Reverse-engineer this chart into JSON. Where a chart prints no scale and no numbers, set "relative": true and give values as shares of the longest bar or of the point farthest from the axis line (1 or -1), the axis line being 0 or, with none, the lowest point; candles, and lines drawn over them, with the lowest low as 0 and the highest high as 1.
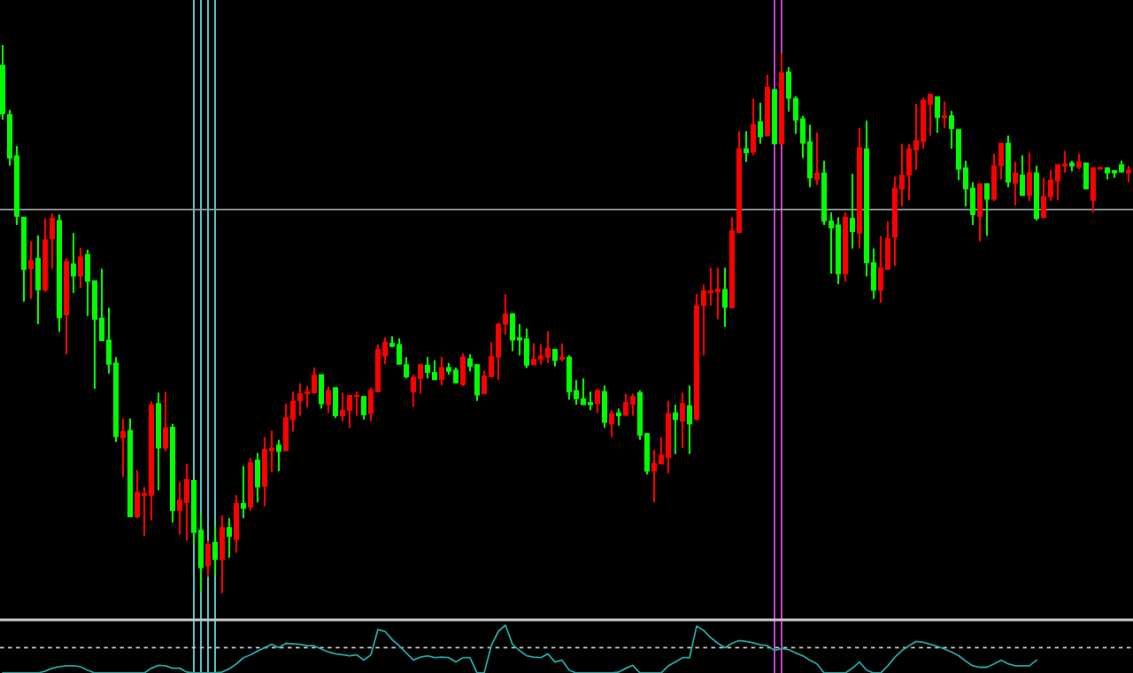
{
  "chart_data": [
    {
      "type": "candlestick",
      "relative": true,
      "categories": [
        null,
        null,
        null,
        null,
        null,
        null,
        null,
        null,
        null,
        null,
        null,
        null,
        null,
        null,
        null,
        null,
        null,
        null,
        null,
        null,
        null,
        null,
        null,
        null,
        null,
        null,
        null,
        null,
        null,
        null,
        null,
        null,
        null,
        null,
        null,
        null,
        null,
        null,
        null,
        null,
        null,
        null,
        null,
        null,
        null,
        null,
        null,
        null,
        null,
        null,
        null,
        null,
        null,
        null,
        null,
        null,
        null,
        null,
        null,
        null,
        null,
        null,
        null,
        null,
        null,
        null,
        null,
        null,
        null,
        null,
        null,
        null,
        null,
        null,
        null,
        null,
        null,
        null,
        null,
        null,
        null,
        null,
        null,
        null,
        null,
        null,
        null,
        null,
        null,
        null,
        null,
        null,
        null,
        null,
        null,
        null,
        null,
        null,
        null,
        null,
        null,
        null,
        null,
        null,
        null,
        null,
        null,
        null,
        null,
        null,
        null,
        null,
        null,
        null,
        null,
        null,
        null,
        null,
        null,
        null,
        null,
        null,
        null,
        null,
        null,
        null,
        null,
        null,
        null,
        null,
        null,
        null,
        null,
        null,
        null,
        null,
        null,
        null,
        null,
        null,
        null,
        null,
        null,
        null,
        null,
        null,
        null,
        null,
        null,
        null,
        null,
        null,
        null,
        null,
        null,
        null,
        null,
        null,
        null,
        null
      ],
      "ohlc": [
        [
          0.963,
          1.0,
          0.864,
          0.875
        ],
        [
          0.873,
          0.882,
          0.78,
          0.794
        ],
        [
          0.798,
          0.816,
          0.672,
          0.688
        ],
        [
          0.686,
          0.686,
          0.532,
          0.591
        ],
        [
          0.592,
          0.642,
          0.537,
          0.607
        ],
        [
          0.611,
          0.653,
          0.491,
          0.554
        ],
        [
          0.554,
          0.684,
          0.55,
          0.645
        ],
        [
          0.647,
          0.693,
          0.592,
          0.684
        ],
        [
          0.68,
          0.691,
          0.477,
          0.503
        ],
        [
          0.508,
          0.611,
          0.436,
          0.605
        ],
        [
          0.601,
          0.657,
          0.548,
          0.579
        ],
        [
          0.579,
          0.63,
          0.557,
          0.614
        ],
        [
          0.618,
          0.627,
          0.506,
          0.569
        ],
        [
          0.57,
          0.57,
          0.373,
          0.5
        ],
        [
          0.502,
          0.592,
          0.461,
          0.461
        ],
        [
          0.462,
          0.521,
          0.401,
          0.418
        ],
        [
          0.42,
          0.431,
          0.276,
          0.286
        ],
        [
          0.284,
          0.319,
          0.212,
          0.295
        ],
        [
          0.297,
          0.319,
          0.14,
          0.14
        ],
        [
          0.14,
          0.225,
          0.137,
          0.184
        ],
        [
          0.179,
          0.194,
          0.105,
          0.182
        ],
        [
          0.179,
          0.35,
          0.133,
          0.344
        ],
        [
          0.346,
          0.366,
          0.188,
          0.265
        ],
        [
          0.265,
          0.367,
          0.259,
          0.302
        ],
        [
          0.303,
          0.309,
          0.129,
          0.151
        ],
        [
          0.151,
          0.203,
          0.107,
          0.17
        ],
        [
          0.166,
          0.236,
          0.096,
          0.208
        ],
        [
          0.206,
          0.206,
          0.091,
          0.111
        ],
        [
          0.115,
          0.145,
          0.004,
          0.047
        ],
        [
          0.05,
          0.096,
          0.03,
          0.089
        ],
        [
          0.093,
          0.122,
          0.034,
          0.062
        ],
        [
          0.062,
          0.142,
          0.0,
          0.12
        ],
        [
          0.12,
          0.137,
          0.065,
          0.104
        ],
        [
          0.098,
          0.179,
          0.074,
          0.164
        ],
        [
          0.164,
          0.232,
          0.137,
          0.155
        ],
        [
          0.157,
          0.247,
          0.151,
          0.238
        ],
        [
          0.243,
          0.256,
          0.166,
          0.194
        ],
        [
          0.195,
          0.285,
          0.159,
          0.262
        ],
        [
          0.26,
          0.297,
          0.221,
          0.265
        ],
        [
          0.27,
          0.28,
          0.223,
          0.259
        ],
        [
          0.26,
          0.346,
          0.26,
          0.32
        ],
        [
          0.317,
          0.368,
          0.295,
          0.35
        ],
        [
          0.351,
          0.383,
          0.324,
          0.364
        ],
        [
          0.364,
          0.378,
          0.339,
          0.367
        ],
        [
          0.366,
          0.412,
          0.364,
          0.398
        ],
        [
          0.399,
          0.399,
          0.337,
          0.346
        ],
        [
          0.344,
          0.377,
          0.329,
          0.37
        ],
        [
          0.375,
          0.375,
          0.32,
          0.324
        ],
        [
          0.324,
          0.366,
          0.314,
          0.334
        ],
        [
          0.334,
          0.361,
          0.302,
          0.361
        ],
        [
          0.359,
          0.368,
          0.324,
          0.361
        ],
        [
          0.359,
          0.359,
          0.317,
          0.326
        ],
        [
          0.328,
          0.375,
          0.314,
          0.37
        ],
        [
          0.368,
          0.454,
          0.368,
          0.445
        ],
        [
          0.433,
          0.467,
          0.418,
          0.458
        ],
        [
          0.456,
          0.469,
          0.449,
          0.451
        ],
        [
          0.454,
          0.465,
          0.418,
          0.418
        ],
        [
          0.417,
          0.431,
          0.392,
          0.395
        ],
        [
          0.368,
          0.399,
          0.34,
          0.394
        ],
        [
          0.392,
          0.417,
          0.364,
          0.417
        ],
        [
          0.416,
          0.431,
          0.392,
          0.403
        ],
        [
          0.403,
          0.425,
          0.39,
          0.39
        ],
        [
          0.39,
          0.431,
          0.379,
          0.412
        ],
        [
          0.412,
          0.42,
          0.399,
          0.405
        ],
        [
          0.407,
          0.412,
          0.383,
          0.384
        ],
        [
          0.381,
          0.438,
          0.378,
          0.431
        ],
        [
          0.428,
          0.436,
          0.405,
          0.414
        ],
        [
          0.417,
          0.417,
          0.351,
          0.362
        ],
        [
          0.364,
          0.406,
          0.364,
          0.396
        ],
        [
          0.395,
          0.458,
          0.395,
          0.432
        ],
        [
          0.431,
          0.493,
          0.389,
          0.491
        ],
        [
          0.491,
          0.546,
          0.472,
          0.509
        ],
        [
          0.51,
          0.511,
          0.442,
          0.462
        ],
        [
          0.466,
          0.491,
          0.434,
          0.462
        ],
        [
          0.464,
          0.483,
          0.411,
          0.416
        ],
        [
          0.417,
          0.456,
          0.417,
          0.427
        ],
        [
          0.427,
          0.454,
          0.417,
          0.433
        ],
        [
          0.431,
          0.478,
          0.42,
          0.447
        ],
        [
          0.445,
          0.445,
          0.414,
          0.425
        ],
        [
          0.427,
          0.456,
          0.423,
          0.431
        ],
        [
          0.431,
          0.434,
          0.353,
          0.368
        ],
        [
          0.37,
          0.389,
          0.344,
          0.355
        ],
        [
          0.355,
          0.392,
          0.344,
          0.344
        ],
        [
          0.348,
          0.368,
          0.334,
          0.344
        ],
        [
          0.346,
          0.373,
          0.329,
          0.37
        ],
        [
          0.368,
          0.379,
          0.302,
          0.312
        ],
        [
          0.309,
          0.334,
          0.285,
          0.328
        ],
        [
          0.329,
          0.337,
          0.306,
          0.324
        ],
        [
          0.325,
          0.364,
          0.324,
          0.348
        ],
        [
          0.345,
          0.364,
          0.324,
          0.359
        ],
        [
          0.366,
          0.37,
          0.28,
          0.289
        ],
        [
          0.291,
          0.292,
          0.217,
          0.223
        ],
        [
          0.223,
          0.262,
          0.166,
          0.237
        ],
        [
          0.236,
          0.285,
          0.236,
          0.252
        ],
        [
          0.248,
          0.351,
          0.219,
          0.328
        ],
        [
          0.329,
          0.344,
          0.254,
          0.317
        ],
        [
          0.314,
          0.366,
          0.265,
          0.346
        ],
        [
          0.342,
          0.379,
          0.254,
          0.309
        ],
        [
          0.317,
          0.546,
          0.317,
          0.524
        ],
        [
          0.525,
          0.563,
          0.434,
          0.552
        ],
        [
          0.548,
          0.594,
          0.525,
          0.552
        ],
        [
          0.55,
          0.594,
          0.5,
          0.555
        ],
        [
          0.554,
          0.594,
          0.486,
          0.522
        ],
        [
          0.521,
          0.686,
          0.521,
          0.661
        ],
        [
          0.658,
          0.843,
          0.658,
          0.811
        ],
        [
          0.811,
          0.843,
          0.787,
          0.804
        ],
        [
          0.805,
          0.902,
          0.799,
          0.855
        ],
        [
          0.86,
          0.895,
          0.82,
          0.833
        ],
        [
          0.835,
          0.946,
          0.835,
          0.923
        ],
        [
          0.919,
          0.919,
          0.82,
          0.82
        ],
        [
          0.82,
          0.985,
          0.82,
          0.95
        ],
        [
          0.951,
          0.96,
          0.879,
          0.903
        ],
        [
          0.903,
          0.907,
          0.838,
          0.863
        ],
        [
          0.866,
          0.871,
          0.794,
          0.821
        ],
        [
          0.824,
          0.855,
          0.741,
          0.758
        ],
        [
          0.755,
          0.841,
          0.745,
          0.767
        ],
        [
          0.767,
          0.789,
          0.672,
          0.679
        ],
        [
          0.679,
          0.695,
          0.583,
          0.667
        ],
        [
          0.672,
          0.686,
          0.564,
          0.583
        ],
        [
          0.583,
          0.695,
          0.569,
          0.686
        ],
        [
          0.684,
          0.765,
          0.629,
          0.66
        ],
        [
          0.657,
          0.849,
          0.629,
          0.813
        ],
        [
          0.811,
          0.862,
          0.578,
          0.603
        ],
        [
          0.603,
          0.629,
          0.537,
          0.553
        ],
        [
          0.553,
          0.652,
          0.53,
          0.594
        ],
        [
          0.591,
          0.679,
          0.591,
          0.647
        ],
        [
          0.65,
          0.76,
          0.597,
          0.739
        ],
        [
          0.737,
          0.82,
          0.706,
          0.763
        ],
        [
          0.763,
          0.82,
          0.717,
          0.811
        ],
        [
          0.809,
          0.893,
          0.772,
          0.826
        ],
        [
          0.824,
          0.904,
          0.811,
          0.899
        ],
        [
          0.892,
          0.912,
          0.835,
          0.91
        ],
        [
          0.906,
          0.906,
          0.84,
          0.868
        ],
        [
          0.868,
          0.897,
          0.849,
          0.871
        ],
        [
          0.871,
          0.88,
          0.811,
          0.848
        ],
        [
          0.846,
          0.846,
          0.754,
          0.774
        ],
        [
          0.776,
          0.789,
          0.706,
          0.738
        ],
        [
          0.739,
          0.75,
          0.672,
          0.691
        ],
        [
          0.688,
          0.747,
          0.642,
          0.747
        ],
        [
          0.747,
          0.747,
          0.652,
          0.719
        ],
        [
          0.719,
          0.802,
          0.716,
          0.78
        ],
        [
          0.78,
          0.821,
          0.755,
          0.821
        ],
        [
          0.821,
          0.835,
          0.741,
          0.75
        ],
        [
          0.748,
          0.787,
          0.708,
          0.767
        ],
        [
          0.763,
          0.799,
          0.726,
          0.726
        ],
        [
          0.726,
          0.804,
          0.716,
          0.767
        ],
        [
          0.767,
          0.78,
          0.68,
          0.684
        ],
        [
          0.686,
          0.758,
          0.684,
          0.724
        ],
        [
          0.724,
          0.772,
          0.716,
          0.754
        ],
        [
          0.752,
          0.782,
          0.717,
          0.782
        ],
        [
          0.78,
          0.807,
          0.767,
          0.783
        ],
        [
          0.785,
          0.789,
          0.77,
          0.78
        ],
        [
          0.777,
          0.802,
          0.774,
          0.787
        ],
        [
          0.785,
          0.785,
          0.738,
          0.738
        ],
        [
          0.717,
          0.776,
          0.695,
          0.776
        ],
        [
          0.774,
          0.777,
          0.774,
          0.777
        ],
        [
          0.776,
          0.776,
          0.755,
          0.767
        ],
        [
          0.771,
          0.772,
          0.758,
          0.767
        ],
        [
          0.782,
          0.789,
          0.767,
          0.769
        ],
        [
          0.767,
          0.78,
          0.75,
          0.772
        ]
      ],
      "colors": [
        "#00ff00",
        "#00ff00",
        "#00ff00",
        "#00ff00",
        "#ff0000",
        "#00ff00",
        "#ff0000",
        "#ff0000",
        "#00ff00",
        "#ff0000",
        "#00ff00",
        "#ff0000",
        "#00ff00",
        "#00ff00",
        "#00ff00",
        "#00ff00",
        "#00ff00",
        "#ff0000",
        "#00ff00",
        "#ff0000",
        "#ff0000",
        "#ff0000",
        "#00ff00",
        "#ff0000",
        "#00ff00",
        "#ff0000",
        "#ff0000",
        "#00ff00",
        "#00ff00",
        "#ff0000",
        "#00ff00",
        "#ff0000",
        "#00ff00",
        "#ff0000",
        "#00ff00",
        "#ff0000",
        "#00ff00",
        "#ff0000",
        "#ff0000",
        "#00ff00",
        "#ff0000",
        "#ff0000",
        "#ff0000",
        "#ff0000",
        "#ff0000",
        "#00ff00",
        "#ff0000",
        "#00ff00",
        "#ff0000",
        "#ff0000",
        "#ff0000",
        "#00ff00",
        "#ff0000",
        "#ff0000",
        "#ff0000",
        "#00ff00",
        "#00ff00",
        "#00ff00",
        "#ff0000",
        "#ff0000",
        "#00ff00",
        "#00ff00",
        "#ff0000",
        "#00ff00",
        "#00ff00",
        "#ff0000",
        "#00ff00",
        "#00ff00",
        "#ff0000",
        "#ff0000",
        "#ff0000",
        "#ff0000",
        "#00ff00",
        "#00ff00",
        "#00ff00",
        "#ff0000",
        "#ff0000",
        "#ff0000",
        "#00ff00",
        "#ff0000",
        "#00ff00",
        "#00ff00",
        "#00ff00",
        "#00ff00",
        "#ff0000",
        "#00ff00",
        "#ff0000",
        "#00ff00",
        "#ff0000",
        "#ff0000",
        "#00ff00",
        "#00ff00",
        "#ff0000",
        "#ff0000",
        "#ff0000",
        "#00ff00",
        "#ff0000",
        "#00ff00",
        "#ff0000",
        "#ff0000",
        "#ff0000",
        "#ff0000",
        "#00ff00",
        "#ff0000",
        "#ff0000",
        "#00ff00",
        "#ff0000",
        "#00ff00",
        "#ff0000",
        "#00ff00",
        "#ff0000",
        "#00ff00",
        "#00ff00",
        "#00ff00",
        "#00ff00",
        "#ff0000",
        "#00ff00",
        "#00ff00",
        "#00ff00",
        "#ff0000",
        "#00ff00",
        "#ff0000",
        "#00ff00",
        "#00ff00",
        "#ff0000",
        "#ff0000",
        "#ff0000",
        "#ff0000",
        "#ff0000",
        "#ff0000",
        "#ff0000",
        "#ff0000",
        "#00ff00",
        "#ff0000",
        "#00ff00",
        "#00ff00",
        "#00ff00",
        "#00ff00",
        "#ff0000",
        "#00ff00",
        "#ff0000",
        "#ff0000",
        "#00ff00",
        "#ff0000",
        "#00ff00",
        "#ff0000",
        "#00ff00",
        "#ff0000",
        "#ff0000",
        "#ff0000",
        "#ff0000",
        "#00ff00",
        "#ff0000",
        "#00ff00",
        "#ff0000",
        "#ff0000",
        "#00ff00",
        "#00ff00",
        "#00ff00",
        "#ff0000"
      ],
      "ref_lines": [
        {
          "axis": "y",
          "value": 0.7,
          "color": "#9aa0a6"
        }
      ]
    },
    {
      "type": "line",
      "relative": true,
      "color": "#23a6a3",
      "categories": [
        null,
        null,
        null,
        null,
        null,
        null,
        null,
        null,
        null,
        null,
        null,
        null,
        null,
        null,
        null,
        null,
        null,
        null,
        null,
        null,
        null,
        null,
        null,
        null,
        null,
        null,
        null,
        null,
        null,
        null,
        null,
        null,
        null,
        null,
        null,
        null,
        null,
        null,
        null,
        null,
        null,
        null,
        null,
        null,
        null,
        null,
        null,
        null,
        null,
        null,
        null,
        null,
        null,
        null,
        null,
        null,
        null,
        null,
        null,
        null,
        null,
        null,
        null,
        null,
        null,
        null,
        null,
        null,
        null,
        null,
        null,
        null,
        null,
        null,
        null,
        null,
        null,
        null,
        null,
        null,
        null,
        null,
        null,
        null,
        null,
        null,
        null,
        null,
        null,
        null,
        null,
        null,
        null,
        null,
        null,
        null,
        null,
        null,
        null,
        null,
        null,
        null,
        null,
        null,
        null,
        null,
        null,
        null,
        null,
        null,
        null,
        null,
        null,
        null,
        null,
        null,
        null,
        null,
        null,
        null,
        null,
        null,
        null,
        null,
        null,
        null,
        null,
        null,
        null,
        null,
        null,
        null,
        null,
        null,
        null,
        null,
        null,
        null,
        null,
        null,
        null,
        null,
        null,
        null,
        null,
        null,
        null,
        null,
        null,
        null,
        null,
        null,
        null,
        null,
        null,
        null,
        null,
        null,
        null,
        null
      ],
      "values": [
        0,
        0,
        0,
        0,
        0,
        0,
        0.04,
        0.1,
        0.13,
        0.15,
        0.15,
        0.13,
        0.06,
        0,
        0,
        0,
        0,
        0,
        0,
        0,
        0,
        0.1,
        0.16,
        0.15,
        0.1,
        0.1,
        0.02,
        0,
        0,
        0,
        0,
        0.02,
        0.09,
        0.19,
        0.32,
        0.38,
        0.46,
        0.53,
        0.6,
        0.53,
        0.62,
        0.61,
        0.6,
        0.57,
        0.57,
        0.5,
        0.44,
        0.4,
        0.38,
        0.36,
        0.38,
        0.27,
        0.38,
        0.91,
        0.87,
        0.7,
        0.57,
        0.42,
        0.27,
        0.33,
        0.36,
        0.32,
        0.33,
        0.32,
        0.23,
        0.32,
        0.32,
        0,
        0,
        0.57,
        0.87,
        1.0,
        0.6,
        0.47,
        0.36,
        0.33,
        0.32,
        0.4,
        0.23,
        0.27,
        0.06,
        0,
        0,
        0,
        0,
        0,
        0,
        0.02,
        0.1,
        0.16,
        0,
        0,
        0,
        0,
        0.15,
        0.23,
        0.32,
        0.32,
        0.98,
        0.89,
        0.74,
        0.62,
        0.53,
        0.62,
        0.68,
        0.66,
        0.63,
        0.59,
        0.57,
        0.47,
        0.51,
        0.49,
        0.42,
        0.36,
        0.27,
        0.19,
        0,
        0,
        0,
        0,
        0.1,
        0.23,
        0.06,
        0,
        0,
        0.15,
        0.33,
        0.47,
        0.57,
        0.66,
        0.64,
        0.6,
        0.56,
        0.5,
        0.44,
        0.36,
        0.25,
        0.15,
        0.12,
        0.12,
        0.19,
        0.27,
        0.19,
        0.15,
        0.15,
        0.15,
        0.27,
        null,
        null,
        null,
        null,
        null,
        null,
        null,
        null,
        null,
        null,
        null,
        null,
        null
      ],
      "ref_lines": [
        {
          "axis": "y",
          "value": 0.53,
          "color": "#c8c8c8",
          "line_style": "dashed"
        }
      ]
    }
  ]
}
